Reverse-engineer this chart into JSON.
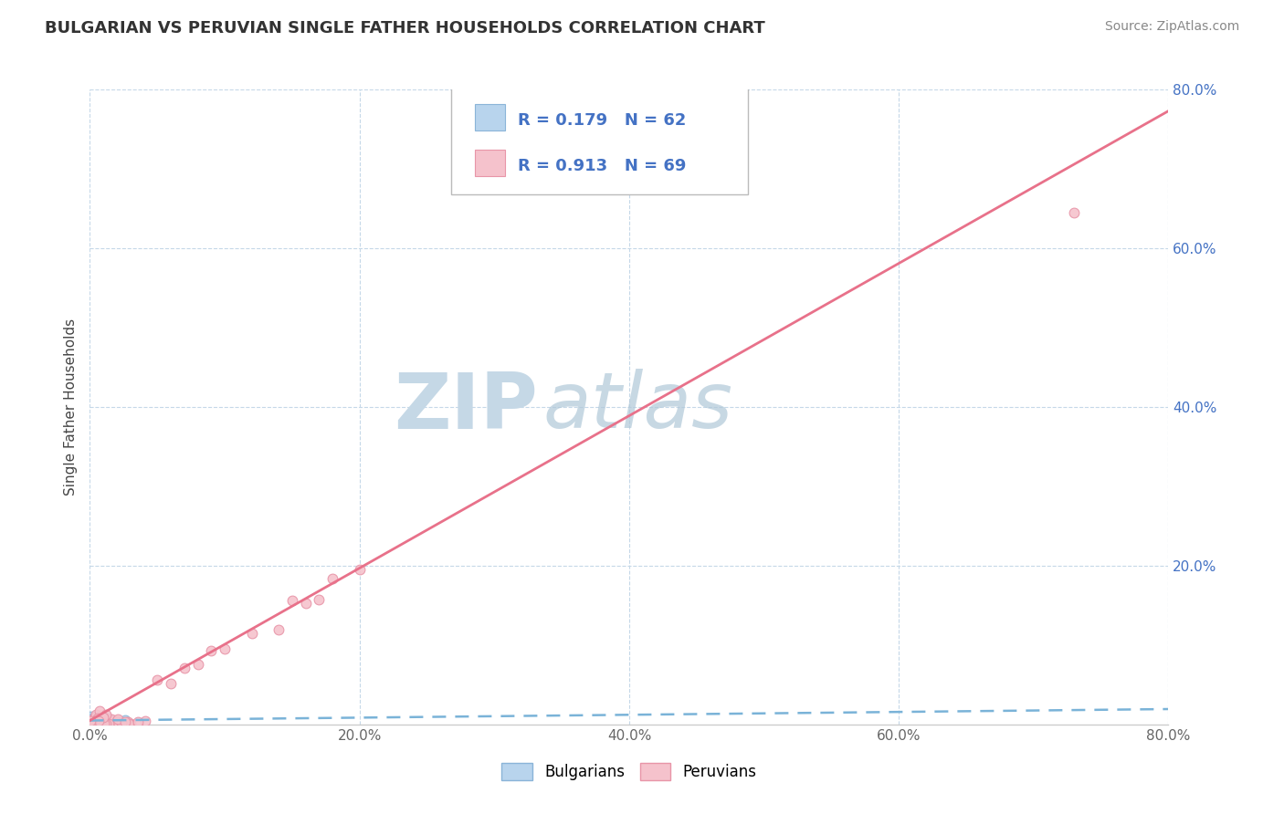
{
  "title": "BULGARIAN VS PERUVIAN SINGLE FATHER HOUSEHOLDS CORRELATION CHART",
  "source_text": "Source: ZipAtlas.com",
  "ylabel": "Single Father Households",
  "xlim": [
    0.0,
    0.8
  ],
  "ylim": [
    0.0,
    0.8
  ],
  "xtick_vals": [
    0.0,
    0.2,
    0.4,
    0.6,
    0.8
  ],
  "ytick_vals": [
    0.2,
    0.4,
    0.6,
    0.8
  ],
  "bulgarian_fill_color": "#b8d4ed",
  "bulgarian_edge_color": "#8ab4d8",
  "peruvian_fill_color": "#f5c2cc",
  "peruvian_edge_color": "#e895a8",
  "bulgarian_line_color": "#7ab3d8",
  "peruvian_line_color": "#e8718a",
  "bg_color": "#ffffff",
  "grid_color": "#c5d8e8",
  "tick_color_x": "#666666",
  "tick_color_y": "#4472c4",
  "R_bulgarian": 0.179,
  "N_bulgarian": 62,
  "R_peruvian": 0.913,
  "N_peruvian": 69,
  "legend_label_bulgarian": "Bulgarians",
  "legend_label_peruvian": "Peruvians",
  "watermark_zip": "ZIP",
  "watermark_atlas": "atlas",
  "title_fontsize": 13,
  "label_fontsize": 11,
  "tick_fontsize": 11,
  "legend_fontsize": 13,
  "watermark_color_zip": "#c5d8e6",
  "watermark_color_atlas": "#b0c8d8",
  "peruvian_line_slope": 0.96,
  "peruvian_line_intercept": 0.005,
  "bulgarian_line_slope": 0.018,
  "bulgarian_line_intercept": 0.005
}
